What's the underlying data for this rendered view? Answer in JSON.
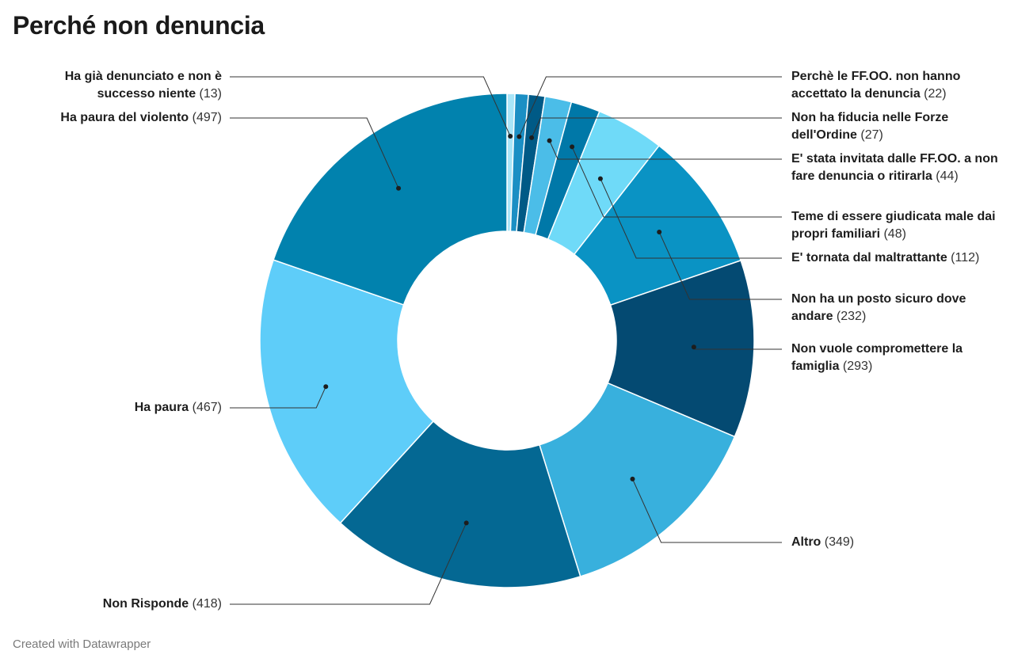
{
  "title": "Perché non denuncia",
  "footer": "Created with Datawrapper",
  "chart_data": {
    "type": "pie",
    "title": "Perché non denuncia",
    "slices": [
      {
        "label": "Ha già denunciato e non è successo niente",
        "value": 13,
        "color": "#a9e5f8"
      },
      {
        "label": "Perchè le FF.OO. non hanno accettato la denuncia",
        "value": 22,
        "color": "#1b8fc4"
      },
      {
        "label": "Non ha fiducia nelle Forze dell'Ordine",
        "value": 27,
        "color": "#005a86"
      },
      {
        "label": "E' stata invitata dalle FF.OO. a non fare denuncia o ritirarla",
        "value": 44,
        "color": "#4bbde8"
      },
      {
        "label": "Teme di essere giudicata male dai propri familiari",
        "value": 48,
        "color": "#0078a8"
      },
      {
        "label": "E' tornata dal maltrattante",
        "value": 112,
        "color": "#6fdaf8"
      },
      {
        "label": "Non ha un posto sicuro dove andare",
        "value": 232,
        "color": "#0a93c4"
      },
      {
        "label": "Non vuole compromettere la famiglia",
        "value": 293,
        "color": "#044a72"
      },
      {
        "label": "Altro",
        "value": 349,
        "color": "#38b0dd"
      },
      {
        "label": "Non Risponde",
        "value": 418,
        "color": "#046893"
      },
      {
        "label": "Ha paura",
        "value": 467,
        "color": "#5ecdf9"
      },
      {
        "label": "Ha paura del violento",
        "value": 497,
        "color": "#0182ae"
      }
    ]
  }
}
